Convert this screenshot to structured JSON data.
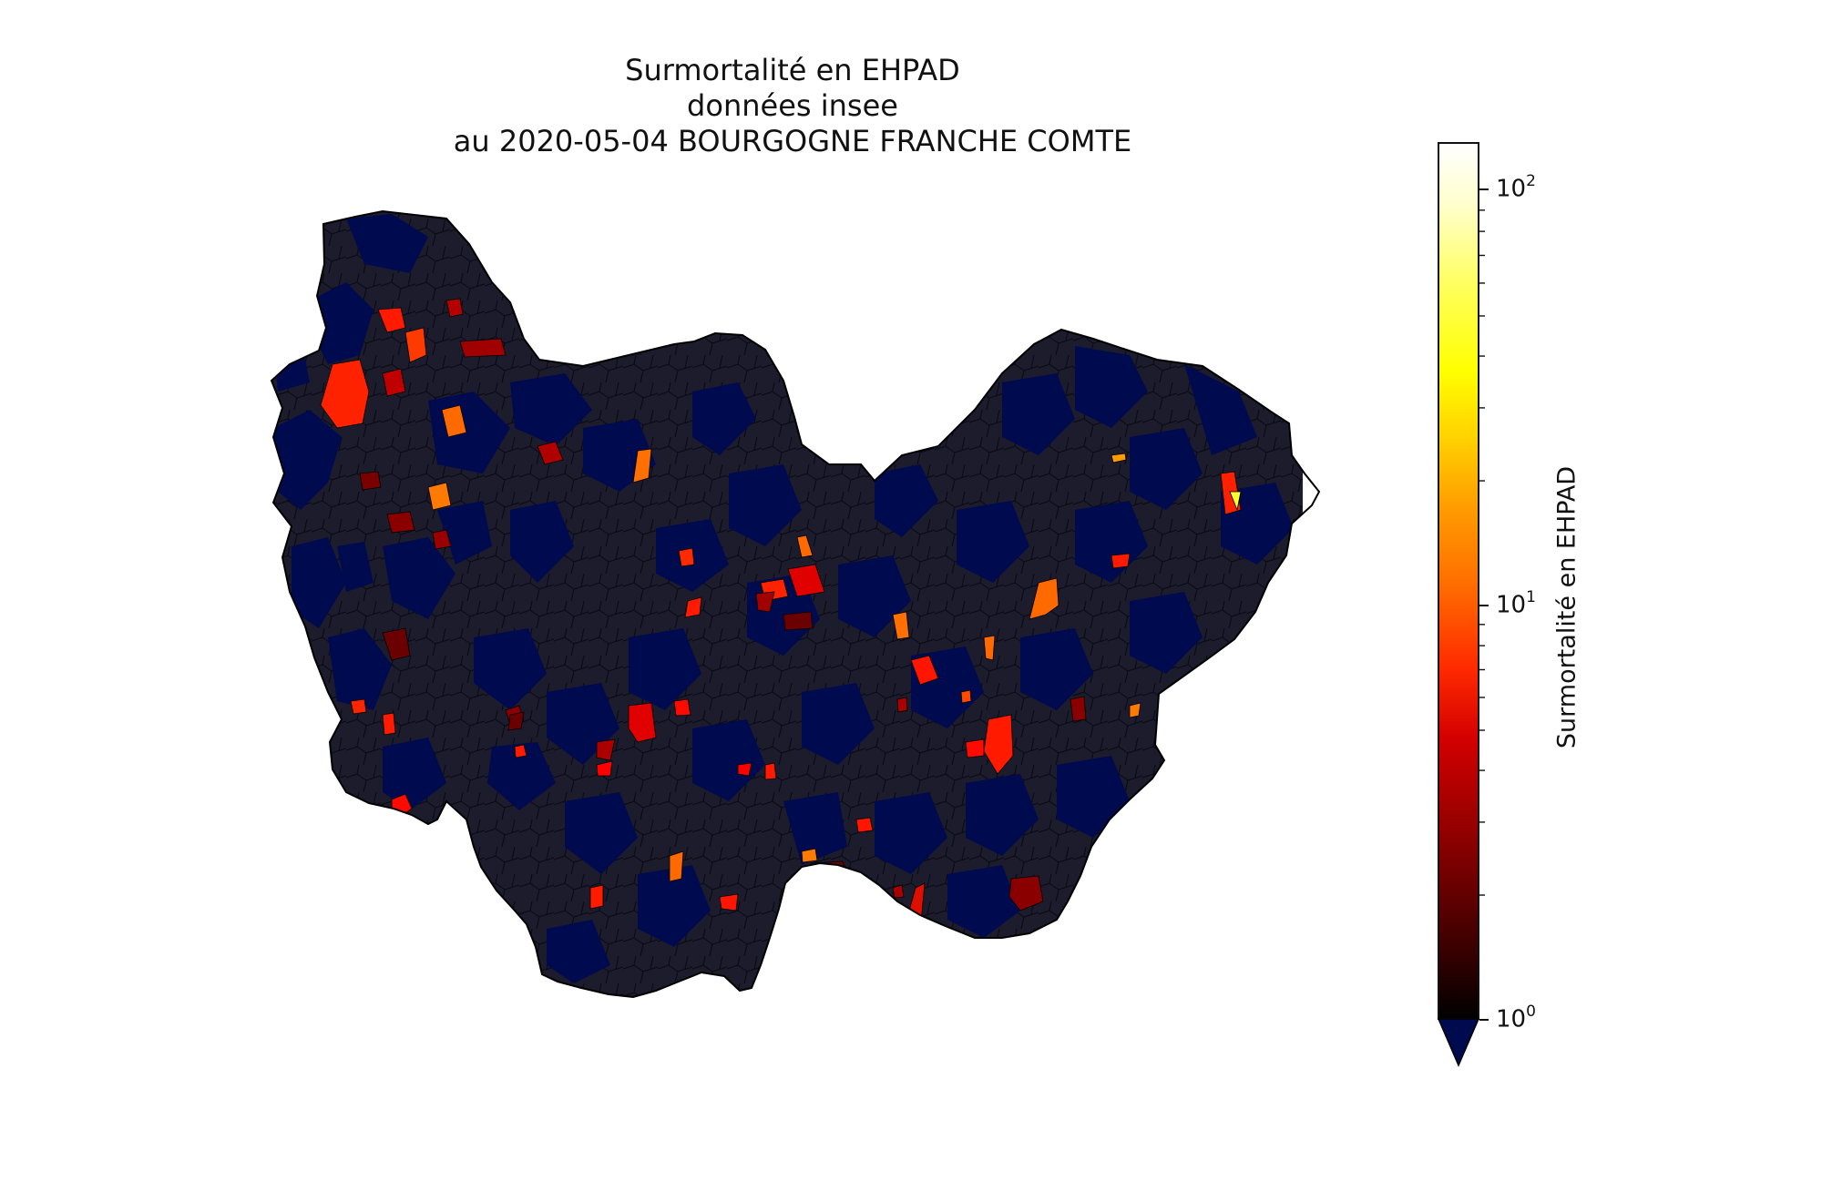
{
  "title": {
    "line1": "Surmortalité en EHPAD",
    "line2": "données insee",
    "line3": "au 2020-05-04 BOURGOGNE FRANCHE COMTE"
  },
  "colorbar": {
    "label": "Surmortalité en EHPAD",
    "scale": "log",
    "colormap": "hot",
    "under_color": "#000a4f",
    "range": [
      1,
      130
    ],
    "ticks": [
      {
        "base": "10",
        "exp": "0",
        "value": 1
      },
      {
        "base": "10",
        "exp": "1",
        "value": 10
      },
      {
        "base": "10",
        "exp": "2",
        "value": 100
      }
    ]
  },
  "map": {
    "region": "BOURGOGNE FRANCHE COMTE",
    "base_color": "#1a1a2e",
    "below_range_color": "#000a4f",
    "border_color": "#000000"
  }
}
